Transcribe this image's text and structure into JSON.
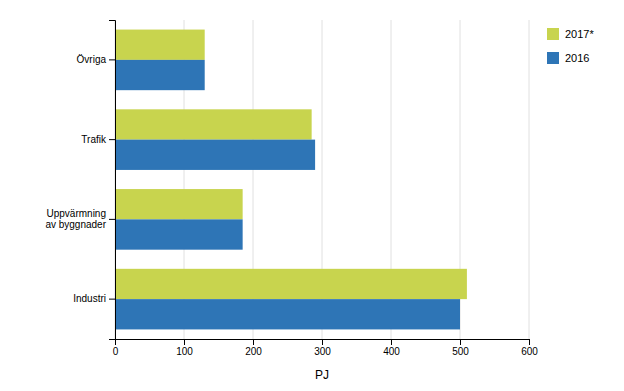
{
  "chart_data": {
    "type": "bar",
    "orientation": "horizontal",
    "categories": [
      "Industri",
      "Uppvärmning\nav byggnader",
      "Trafik",
      "Övriga"
    ],
    "series": [
      {
        "name": "2017*",
        "color": "#c8d44e",
        "values": [
          510,
          185,
          285,
          130
        ]
      },
      {
        "name": "2016",
        "color": "#2e75b6",
        "values": [
          500,
          185,
          290,
          130
        ]
      }
    ],
    "xlabel": "PJ",
    "xlim": [
      0,
      600
    ],
    "xticks": [
      0,
      100,
      200,
      300,
      400,
      500,
      600
    ],
    "grid": true,
    "legend": "upper right"
  }
}
